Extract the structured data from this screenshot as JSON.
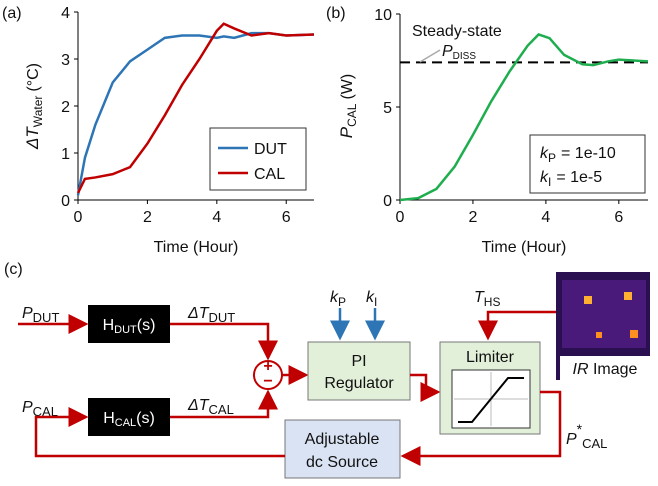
{
  "chart_data": [
    {
      "type": "line",
      "panel": "(a)",
      "xlabel": "Time (Hour)",
      "ylabel": {
        "main": "ΔT",
        "sub": "Water",
        "unit": "(°C)"
      },
      "x": [
        0,
        0.2,
        0.5,
        1,
        1.5,
        2,
        2.5,
        3,
        3.5,
        4,
        4.2,
        4.5,
        5,
        5.5,
        6,
        6.8
      ],
      "xlim": [
        0,
        6.8
      ],
      "xticks": [
        0,
        2,
        4,
        6
      ],
      "ylim": [
        0,
        4
      ],
      "yticks": [
        0,
        1,
        2,
        3,
        4
      ],
      "legend": "lower right",
      "series": [
        {
          "name": "DUT",
          "color": "#2e75b6",
          "values": [
            0.1,
            0.9,
            1.6,
            2.5,
            2.95,
            3.2,
            3.45,
            3.5,
            3.5,
            3.45,
            3.48,
            3.45,
            3.55,
            3.55,
            3.5,
            3.52
          ]
        },
        {
          "name": "CAL",
          "color": "#c00000",
          "values": [
            0.15,
            0.45,
            0.48,
            0.55,
            0.7,
            1.2,
            1.8,
            2.45,
            3.0,
            3.6,
            3.75,
            3.65,
            3.5,
            3.55,
            3.5,
            3.52
          ]
        }
      ]
    },
    {
      "type": "line",
      "panel": "(b)",
      "xlabel": "Time (Hour)",
      "ylabel": {
        "main": "P",
        "sub": "CAL",
        "unit": "(W)"
      },
      "x": [
        0,
        0.5,
        1,
        1.5,
        2,
        2.5,
        3,
        3.5,
        3.8,
        4.1,
        4.5,
        5,
        5.3,
        5.7,
        6,
        6.4,
        6.8
      ],
      "xlim": [
        0,
        6.8
      ],
      "xticks": [
        0,
        2,
        4,
        6
      ],
      "ylim": [
        0,
        10
      ],
      "yticks": [
        0,
        5,
        10
      ],
      "series": [
        {
          "color": "#1fae4f",
          "values": [
            0,
            0.1,
            0.6,
            1.8,
            3.5,
            5.3,
            6.9,
            8.3,
            8.9,
            8.7,
            7.8,
            7.3,
            7.25,
            7.45,
            7.55,
            7.5,
            7.45
          ]
        }
      ],
      "reference": {
        "label": "Steady-state",
        "symbol": {
          "main": "P",
          "sub": "DISS"
        },
        "value": 7.4
      },
      "annotation": [
        {
          "main": "k",
          "sub": "P",
          "text": "= 1e-10"
        },
        {
          "main": "k",
          "sub": "I",
          "text": "= 1e-5"
        }
      ]
    }
  ],
  "diagram": {
    "panel": "(c)",
    "p_dut": {
      "main": "P",
      "sub": "DUT"
    },
    "h_dut": {
      "main": "H",
      "sub": "DUT",
      "tail": "(s)"
    },
    "dt_dut": {
      "main": "ΔT",
      "sub": "DUT"
    },
    "p_cal": {
      "main": "P",
      "sub": "CAL"
    },
    "h_cal": {
      "main": "H",
      "sub": "CAL",
      "tail": "(s)"
    },
    "dt_cal": {
      "main": "ΔT",
      "sub": "CAL"
    },
    "plus": "+",
    "minus": "−",
    "kp": {
      "main": "k",
      "sub": "P"
    },
    "ki": {
      "main": "k",
      "sub": "I"
    },
    "pi": [
      "PI",
      "Regulator"
    ],
    "limiter": "Limiter",
    "t_hs": {
      "main": "T",
      "sub": "HS"
    },
    "ir": {
      "main": "IR",
      "tail": "Image"
    },
    "p_star": {
      "main": "P",
      "sup": "*",
      "sub": "CAL"
    },
    "source": [
      "Adjustable",
      "dc Source"
    ]
  }
}
